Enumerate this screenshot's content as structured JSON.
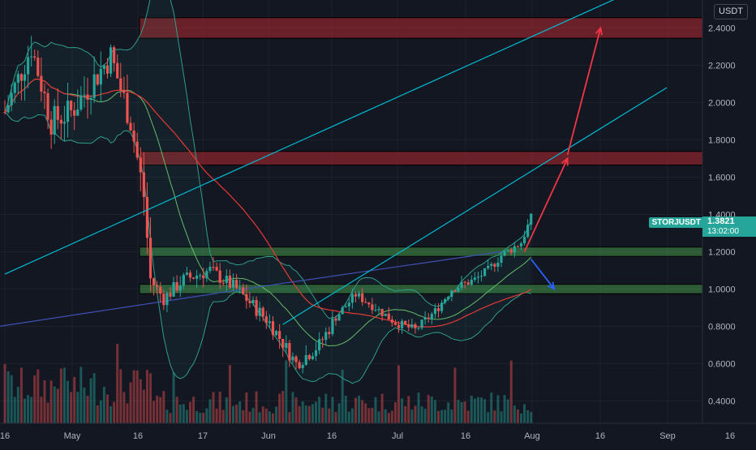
{
  "chart_data": {
    "type": "candlestick",
    "symbol": "STORJUSDT",
    "currency": "USDT",
    "last_price": "1.3821",
    "countdown": "13:02:00",
    "x_ticks": [
      "16",
      "May",
      "16",
      "17",
      "Jun",
      "16",
      "Jul",
      "16",
      "Aug",
      "16",
      "Sep",
      "16"
    ],
    "y_ticks": [
      "2.4000",
      "2.2000",
      "2.0000",
      "1.8000",
      "1.6000",
      "1.4000",
      "1.2000",
      "1.0000",
      "0.8000",
      "0.6000",
      "0.4000"
    ],
    "y_range": [
      0.28,
      2.55
    ],
    "colors": {
      "background": "#131722",
      "grid": "#1e222d",
      "up": "#26a69a",
      "down": "#ef5350",
      "resistance_zone": "#b2282e",
      "support_zone": "#4caf50",
      "trendline": "#00bcd4",
      "arrow_up": "#f23645",
      "arrow_down": "#2962ff",
      "ma_slow": "#e53935",
      "ma_mid": "#66bb6a",
      "ma_long": "#3f51b5",
      "band": "#2e9e8a"
    },
    "zones": [
      {
        "kind": "resistance",
        "low": 2.345,
        "high": 2.455
      },
      {
        "kind": "resistance",
        "low": 1.665,
        "high": 1.738
      },
      {
        "kind": "support",
        "low": 1.175,
        "high": 1.225
      },
      {
        "kind": "support",
        "low": 0.975,
        "high": 1.025
      }
    ],
    "trendlines": [
      {
        "from": {
          "bar": 0,
          "price": 1.08
        },
        "to": {
          "bar": 205,
          "price": 2.72
        }
      },
      {
        "from": {
          "bar": 84,
          "price": 0.81
        },
        "to": {
          "bar": 200,
          "price": 2.08
        }
      }
    ],
    "projections": [
      {
        "direction": "up",
        "from": {
          "bar": 157,
          "price": 1.2
        },
        "to": {
          "bar": 170,
          "price": 1.7
        }
      },
      {
        "direction": "up",
        "from": {
          "bar": 170,
          "price": 1.72
        },
        "to": {
          "bar": 180,
          "price": 2.4
        }
      },
      {
        "direction": "down",
        "from": {
          "bar": 159,
          "price": 1.16
        },
        "to": {
          "bar": 166,
          "price": 1.0
        }
      }
    ]
  }
}
